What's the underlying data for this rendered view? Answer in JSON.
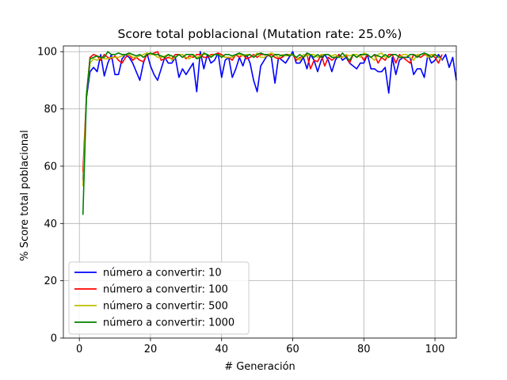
{
  "chart_data": {
    "type": "line",
    "title": "Score total poblacional (Mutation rate: 25.0%)",
    "xlabel": "# Generación",
    "ylabel": "% Score total poblacional",
    "xlim": [
      -4.5,
      106
    ],
    "ylim": [
      0,
      102
    ],
    "xticks": [
      0,
      20,
      40,
      60,
      80,
      100
    ],
    "yticks": [
      0,
      20,
      40,
      60,
      80,
      100
    ],
    "grid": true,
    "legend_position": "lower-left",
    "series": [
      {
        "name": "número a convertir: 10",
        "color": "#0000ff",
        "x_start": 1,
        "values": [
          55,
          84,
          93,
          94.5,
          93,
          99,
          91.5,
          96,
          99,
          92,
          92,
          97.5,
          99,
          98,
          96,
          93,
          90,
          96,
          99.5,
          95,
          92,
          90,
          94,
          98,
          96,
          96,
          98,
          91,
          94,
          92,
          94,
          96,
          86,
          100,
          94,
          99,
          96,
          97,
          99.5,
          91,
          97,
          98,
          91,
          94,
          98,
          95,
          99,
          96,
          90,
          86,
          95,
          97,
          99,
          98,
          89,
          98,
          97,
          96,
          98,
          100,
          96,
          96,
          98,
          94,
          99,
          97,
          93,
          97,
          99,
          97,
          93,
          97,
          99,
          97,
          98,
          96,
          95,
          94,
          96,
          96,
          99,
          94,
          94,
          93,
          93,
          94.5,
          85.5,
          98,
          92,
          97,
          98,
          98,
          98,
          92,
          94,
          94,
          91,
          99,
          96,
          97,
          99,
          97,
          99,
          94.5,
          98,
          90
        ]
      },
      {
        "name": "número a convertir: 100",
        "color": "#ff0000",
        "x_start": 1,
        "values": [
          58,
          85,
          98,
          99,
          98.5,
          97,
          99,
          98,
          97.5,
          98.5,
          97,
          96,
          98,
          99,
          97,
          98,
          97,
          96.5,
          99,
          99,
          99.5,
          100,
          97,
          97.5,
          98,
          97.5,
          99,
          99,
          99,
          97.5,
          98.5,
          98,
          99,
          99,
          98,
          98,
          99,
          99,
          99.5,
          99,
          98,
          98,
          97,
          99,
          98,
          99,
          97.5,
          98,
          99,
          98,
          99,
          99,
          98.5,
          99,
          98,
          97.5,
          98,
          99,
          99,
          99,
          97,
          98,
          98,
          99,
          94,
          97,
          96.5,
          99,
          95,
          98,
          97,
          98,
          99,
          98,
          99,
          96,
          99,
          98,
          99,
          97,
          99,
          98,
          99,
          96,
          98,
          97,
          99,
          99,
          96,
          99,
          98,
          97,
          96,
          99,
          98.5,
          98,
          99,
          98.5,
          99,
          98,
          96,
          99
        ]
      },
      {
        "name": "número a convertir: 500",
        "color": "#bfbf00",
        "x_start": 1,
        "values": [
          53,
          85,
          96,
          97.5,
          97,
          98,
          97.5,
          97.5,
          98,
          98,
          98,
          98.5,
          99,
          99,
          98,
          98,
          98.5,
          99,
          99.5,
          99,
          99,
          98,
          98,
          98.5,
          99,
          97,
          98,
          99,
          99,
          98,
          97.5,
          99,
          98,
          98.5,
          99,
          99,
          98.5,
          99,
          99,
          98.5,
          98,
          98,
          98,
          99,
          99,
          98.5,
          99,
          99,
          98,
          99.5,
          98,
          98,
          99,
          99.5,
          99,
          98,
          99,
          98.5,
          99,
          99,
          98,
          97,
          99,
          98.5,
          99,
          99,
          98,
          99,
          99,
          99,
          98.5,
          99,
          98,
          98,
          99,
          98.5,
          99,
          99,
          98,
          99.5,
          99,
          98,
          97,
          99,
          99.5,
          98,
          98,
          99,
          99,
          98,
          99,
          99,
          98,
          97,
          99,
          99,
          99.5,
          98,
          99,
          99,
          98,
          97
        ]
      },
      {
        "name": "número a convertir: 1000",
        "color": "#008000",
        "x_start": 1,
        "values": [
          43,
          85,
          97.5,
          98,
          98.5,
          98,
          98,
          100,
          99,
          99,
          99.5,
          99,
          99,
          99.5,
          99,
          98.5,
          99,
          98,
          99,
          99.5,
          99,
          99,
          98.5,
          98,
          99,
          98.5,
          98,
          99,
          98,
          99,
          99,
          99,
          97.5,
          98,
          99.5,
          99,
          98,
          99,
          99,
          98,
          99,
          99,
          98.5,
          99,
          99.5,
          99,
          98.5,
          99,
          98,
          99,
          99.5,
          99,
          99,
          98,
          99,
          99,
          98.5,
          99,
          98.5,
          99,
          98,
          99,
          98,
          99.5,
          99,
          98,
          99,
          98,
          99,
          99,
          98,
          98,
          98,
          99.5,
          98,
          97,
          99,
          98,
          99,
          99,
          99,
          98,
          99,
          98.5,
          98,
          99,
          98,
          99,
          99,
          98,
          98,
          98,
          99,
          99,
          98,
          99,
          99.5,
          99,
          98,
          99,
          98
        ]
      }
    ]
  }
}
